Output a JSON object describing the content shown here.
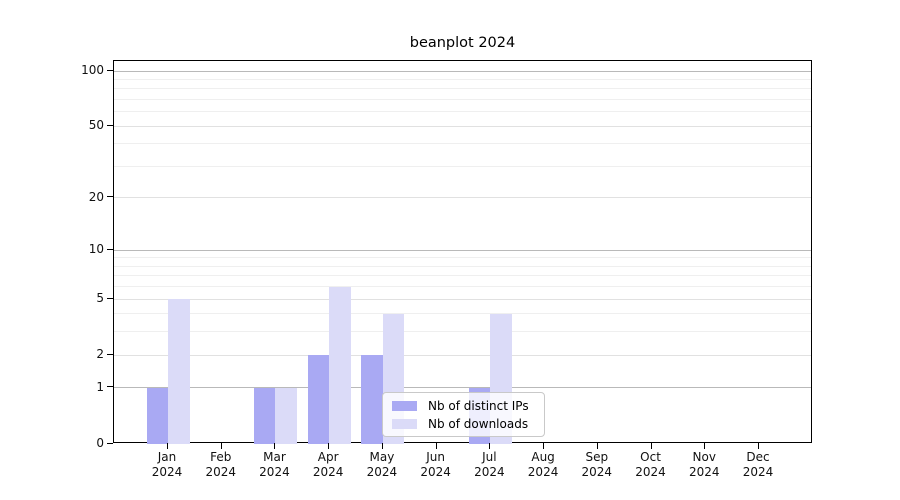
{
  "chart_data": {
    "type": "bar",
    "title": "beanplot 2024",
    "months": [
      "Jan",
      "Feb",
      "Mar",
      "Apr",
      "May",
      "Jun",
      "Jul",
      "Aug",
      "Sep",
      "Oct",
      "Nov",
      "Dec"
    ],
    "year": "2024",
    "series": [
      {
        "name": "Nb of distinct IPs",
        "color": "#a9a9f3",
        "values": [
          1,
          0,
          1,
          2,
          2,
          0,
          1,
          0,
          0,
          0,
          0,
          0
        ]
      },
      {
        "name": "Nb of downloads",
        "color": "#dbdbf8",
        "values": [
          5,
          0,
          1,
          6,
          4,
          0,
          4,
          0,
          0,
          0,
          0,
          0
        ]
      }
    ],
    "scale": "log1p",
    "ylim": [
      0,
      113.4
    ],
    "yticks": [
      0,
      1,
      2,
      5,
      10,
      20,
      50,
      100
    ],
    "gridlines": {
      "major": [
        1,
        10,
        100
      ],
      "mid": [
        2,
        5,
        20,
        50
      ],
      "minor": [
        3,
        4,
        6,
        7,
        8,
        9,
        30,
        40,
        60,
        70,
        80,
        90
      ]
    },
    "grid_colors": {
      "major": "#b9b9b9",
      "mid": "#e1e1e1",
      "minor": "#efefef"
    },
    "legend_position": "lower center"
  }
}
